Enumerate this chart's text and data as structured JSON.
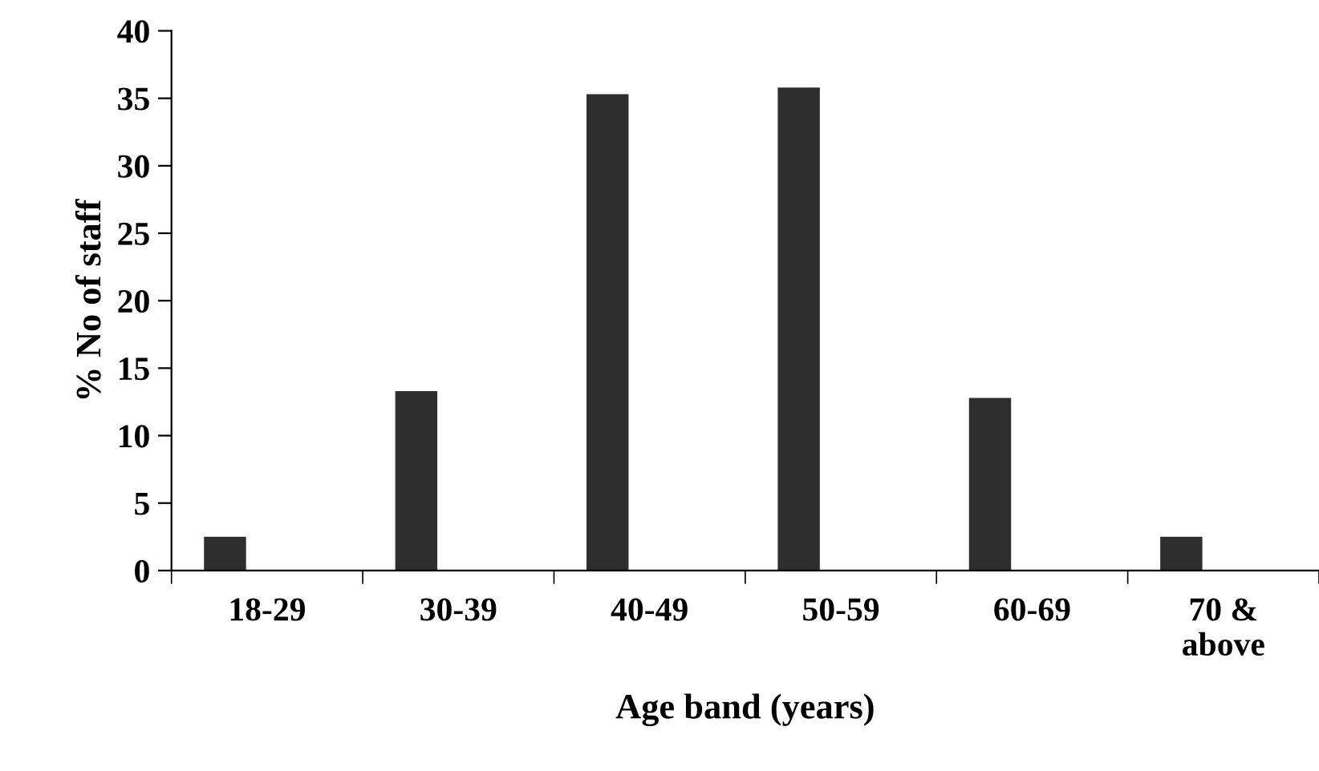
{
  "chart_data": {
    "type": "bar",
    "xlabel": "Age band (years)",
    "ylabel": "% No of staff",
    "categories": [
      "18-29",
      "30-39",
      "40-49",
      "50-59",
      "60-69",
      "70 &\nabove"
    ],
    "values": [
      2.5,
      13.3,
      35.3,
      35.8,
      12.8,
      2.5
    ],
    "color": "#2e2e2e",
    "ylim": [
      0,
      40
    ],
    "yticks": [
      0,
      5,
      10,
      15,
      20,
      25,
      30,
      35,
      40
    ],
    "grid": false,
    "legend": false
  }
}
